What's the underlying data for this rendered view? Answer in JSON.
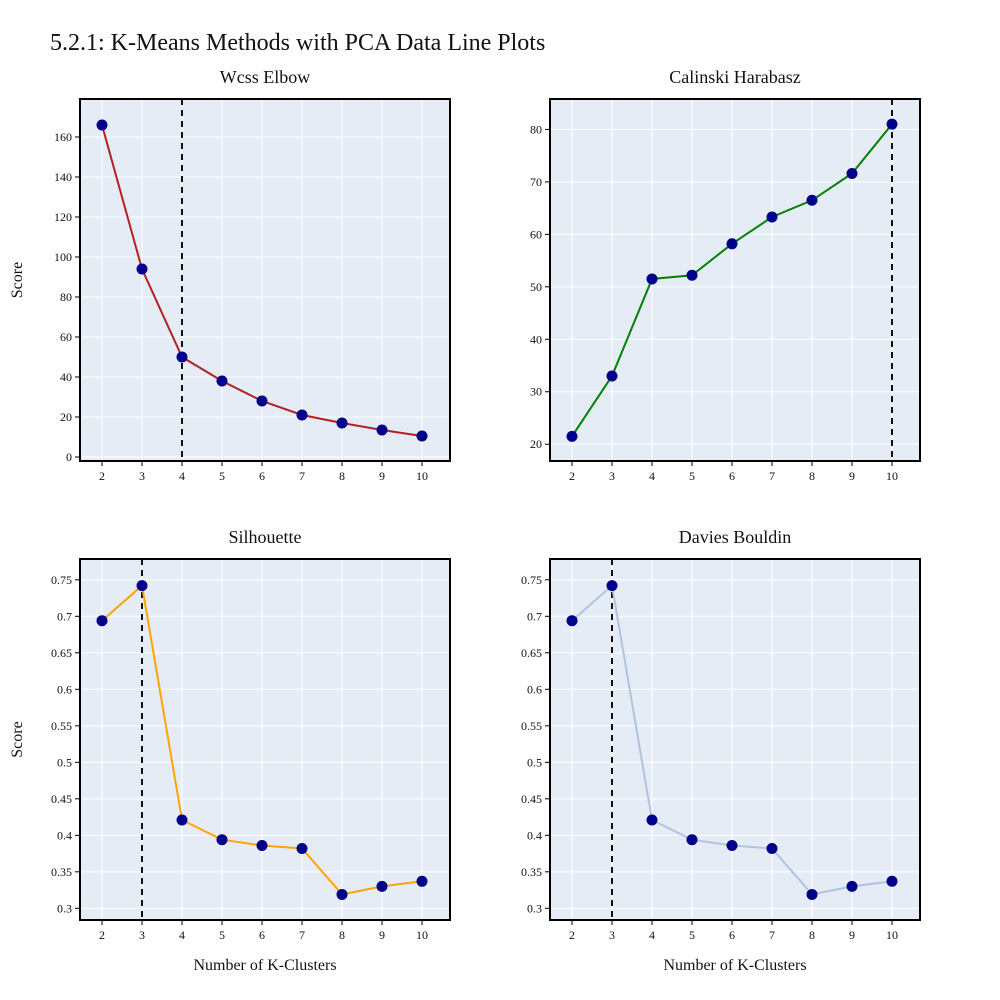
{
  "figure_title": "5.2.1: K-Means Methods with PCA Data Line Plots",
  "marker_color": "#00008b",
  "plot_bg": "#e5ecf6",
  "chart_data": [
    {
      "type": "line",
      "title": "Wcss Elbow",
      "ylabel": "Score",
      "xlabel": "",
      "x": [
        2,
        3,
        4,
        5,
        6,
        7,
        8,
        9,
        10
      ],
      "values": [
        166,
        94,
        50,
        38,
        28,
        21,
        17,
        13.5,
        10.5
      ],
      "line_color": "#b22222",
      "marker_line_x": 4,
      "xlim": [
        1.45,
        10.7
      ],
      "ylim": [
        -2,
        179
      ],
      "yticks": [
        0,
        20,
        40,
        60,
        80,
        100,
        120,
        140,
        160
      ],
      "ytick_labels": [
        "0",
        "20",
        "40",
        "60",
        "80",
        "100",
        "120",
        "140",
        "160"
      ],
      "xticks": [
        2,
        3,
        4,
        5,
        6,
        7,
        8,
        9,
        10
      ],
      "grid": true
    },
    {
      "type": "line",
      "title": "Calinski Harabasz",
      "ylabel": "",
      "xlabel": "",
      "x": [
        2,
        3,
        4,
        5,
        6,
        7,
        8,
        9,
        10
      ],
      "values": [
        21.5,
        33,
        51.5,
        52.2,
        58.2,
        63.3,
        66.5,
        71.6,
        81
      ],
      "line_color": "#008000",
      "marker_line_x": 10,
      "xlim": [
        1.45,
        10.7
      ],
      "ylim": [
        16.8,
        85.8
      ],
      "yticks": [
        20,
        30,
        40,
        50,
        60,
        70,
        80
      ],
      "ytick_labels": [
        "20",
        "30",
        "40",
        "50",
        "60",
        "70",
        "80"
      ],
      "xticks": [
        2,
        3,
        4,
        5,
        6,
        7,
        8,
        9,
        10
      ],
      "grid": true
    },
    {
      "type": "line",
      "title": "Silhouette",
      "ylabel": "Score",
      "xlabel": "Number of K-Clusters",
      "x": [
        2,
        3,
        4,
        5,
        6,
        7,
        8,
        9,
        10
      ],
      "values": [
        0.694,
        0.742,
        0.421,
        0.394,
        0.386,
        0.382,
        0.319,
        0.33,
        0.337
      ],
      "line_color": "#ffa500",
      "marker_line_x": 3,
      "xlim": [
        1.45,
        10.7
      ],
      "ylim": [
        0.284,
        0.7785
      ],
      "yticks": [
        0.3,
        0.35,
        0.4,
        0.45,
        0.5,
        0.55,
        0.6,
        0.65,
        0.7,
        0.75
      ],
      "ytick_labels": [
        "0.3",
        "0.35",
        "0.4",
        "0.45",
        "0.5",
        "0.55",
        "0.6",
        "0.65",
        "0.7",
        "0.75"
      ],
      "xticks": [
        2,
        3,
        4,
        5,
        6,
        7,
        8,
        9,
        10
      ],
      "grid": true
    },
    {
      "type": "line",
      "title": "Davies Bouldin",
      "ylabel": "",
      "xlabel": "Number of K-Clusters",
      "x": [
        2,
        3,
        4,
        5,
        6,
        7,
        8,
        9,
        10
      ],
      "values": [
        0.694,
        0.742,
        0.421,
        0.394,
        0.386,
        0.382,
        0.319,
        0.33,
        0.337
      ],
      "line_color": "#b0c4de",
      "marker_line_x": 3,
      "xlim": [
        1.45,
        10.7
      ],
      "ylim": [
        0.284,
        0.7785
      ],
      "yticks": [
        0.3,
        0.35,
        0.4,
        0.45,
        0.5,
        0.55,
        0.6,
        0.65,
        0.7,
        0.75
      ],
      "ytick_labels": [
        "0.3",
        "0.35",
        "0.4",
        "0.45",
        "0.5",
        "0.55",
        "0.6",
        "0.65",
        "0.7",
        "0.75"
      ],
      "xticks": [
        2,
        3,
        4,
        5,
        6,
        7,
        8,
        9,
        10
      ],
      "grid": true
    }
  ]
}
